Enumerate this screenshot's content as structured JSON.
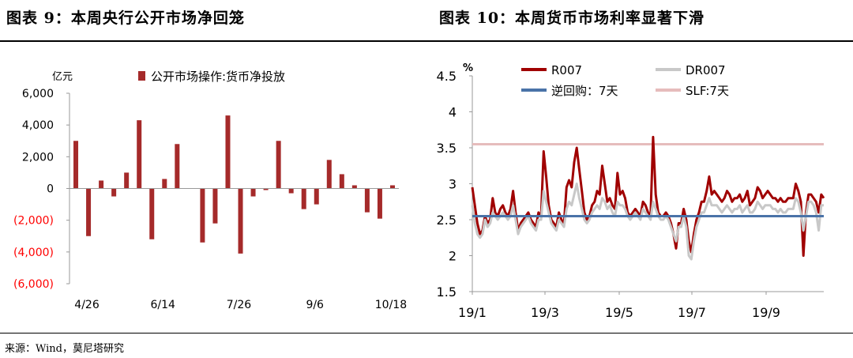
{
  "titles": {
    "left": "图表 9：本周央行公开市场净回笼",
    "right": "图表 10：本周货币市场利率显著下滑"
  },
  "source": "来源：Wind，莫尼塔研究",
  "colors": {
    "bar": "#a52a2a",
    "r007": "#a00000",
    "dr007": "#c8c8c8",
    "reverse_repo": "#4a73a8",
    "slf": "#e6bcbc",
    "negative_label": "#ff0000"
  },
  "chart_data": [
    {
      "type": "bar",
      "title": "",
      "ylabel": "亿元",
      "ylim": [
        -6000,
        6000
      ],
      "yticks": [
        6000,
        4000,
        2000,
        0,
        -2000,
        -4000,
        -6000
      ],
      "ytick_labels": [
        "6,000",
        "4,000",
        "2,000",
        "0",
        "(2,000)",
        "(4,000)",
        "(6,000)"
      ],
      "xtick_labels": [
        "4/26",
        "6/14",
        "7/26",
        "9/6",
        "10/18"
      ],
      "legend_position": "top",
      "series": [
        {
          "name": "公开市场操作:货币净投放",
          "values": [
            3000,
            -3000,
            500,
            -500,
            1000,
            4300,
            -3200,
            600,
            2800,
            0,
            -3400,
            -2200,
            4600,
            -4100,
            -500,
            -100,
            3000,
            -300,
            -1300,
            -1000,
            1800,
            900,
            200,
            -1500,
            -1900,
            200
          ]
        }
      ]
    },
    {
      "type": "line",
      "title": "",
      "ylabel": "%",
      "ylim": [
        1.5,
        4.5
      ],
      "yticks": [
        1.5,
        2,
        2.5,
        3,
        3.5,
        4,
        4.5
      ],
      "ytick_labels": [
        "1.5",
        "2",
        "2.5",
        "3",
        "3.5",
        "4",
        "4.5"
      ],
      "xtick_labels": [
        "19/1",
        "19/3",
        "19/5",
        "19/7",
        "19/9"
      ],
      "legend_position": "top",
      "series": [
        {
          "name": "R007",
          "values": [
            2.95,
            2.7,
            2.45,
            2.3,
            2.35,
            2.55,
            2.45,
            2.5,
            2.8,
            2.6,
            2.55,
            2.65,
            2.7,
            2.6,
            2.55,
            2.65,
            2.9,
            2.6,
            2.35,
            2.45,
            2.5,
            2.55,
            2.6,
            2.5,
            2.45,
            2.4,
            2.6,
            2.55,
            3.45,
            3.1,
            2.7,
            2.5,
            2.45,
            2.4,
            2.6,
            2.5,
            2.45,
            2.95,
            3.05,
            2.95,
            3.3,
            3.5,
            3.2,
            2.9,
            2.6,
            2.5,
            2.55,
            2.7,
            2.75,
            2.9,
            2.85,
            3.25,
            3.0,
            2.75,
            2.8,
            2.7,
            2.65,
            3.15,
            2.85,
            2.9,
            2.8,
            2.6,
            2.55,
            2.6,
            2.65,
            2.6,
            2.55,
            2.75,
            2.7,
            2.6,
            2.55,
            3.65,
            2.85,
            2.6,
            2.55,
            2.55,
            2.6,
            2.55,
            2.45,
            2.3,
            2.1,
            2.45,
            2.45,
            2.65,
            2.5,
            2.2,
            2.05,
            2.3,
            2.5,
            2.6,
            2.75,
            2.75,
            2.9,
            3.1,
            2.85,
            2.9,
            2.85,
            2.8,
            2.75,
            2.8,
            2.9,
            2.85,
            2.75,
            2.8,
            2.8,
            2.85,
            2.75,
            2.8,
            2.9,
            2.7,
            2.75,
            2.8,
            2.95,
            2.9,
            2.8,
            2.85,
            2.9,
            2.85,
            2.8,
            2.8,
            2.75,
            2.8,
            2.75,
            2.75,
            2.8,
            2.8,
            2.8,
            3.0,
            2.9,
            2.75,
            2.0,
            2.6,
            2.85,
            2.85,
            2.8,
            2.75,
            2.6,
            2.85,
            2.8
          ]
        },
        {
          "name": "DR007",
          "values": [
            2.7,
            2.45,
            2.3,
            2.25,
            2.3,
            2.5,
            2.4,
            2.45,
            2.6,
            2.55,
            2.5,
            2.55,
            2.6,
            2.55,
            2.5,
            2.55,
            2.7,
            2.5,
            2.3,
            2.4,
            2.45,
            2.5,
            2.55,
            2.45,
            2.4,
            2.35,
            2.5,
            2.5,
            2.9,
            2.75,
            2.6,
            2.45,
            2.4,
            2.35,
            2.5,
            2.45,
            2.4,
            2.65,
            2.75,
            2.7,
            2.85,
            3.0,
            2.8,
            2.65,
            2.5,
            2.45,
            2.5,
            2.6,
            2.65,
            2.7,
            2.65,
            2.8,
            2.75,
            2.65,
            2.7,
            2.6,
            2.55,
            2.75,
            2.7,
            2.7,
            2.65,
            2.55,
            2.5,
            2.55,
            2.6,
            2.55,
            2.5,
            2.65,
            2.6,
            2.55,
            2.5,
            2.75,
            2.65,
            2.55,
            2.5,
            2.5,
            2.55,
            2.5,
            2.4,
            2.3,
            2.2,
            2.4,
            2.4,
            2.55,
            2.4,
            2.0,
            1.95,
            2.2,
            2.4,
            2.5,
            2.6,
            2.6,
            2.7,
            2.8,
            2.7,
            2.7,
            2.7,
            2.65,
            2.6,
            2.65,
            2.7,
            2.65,
            2.6,
            2.65,
            2.65,
            2.7,
            2.6,
            2.65,
            2.7,
            2.6,
            2.6,
            2.65,
            2.75,
            2.7,
            2.65,
            2.7,
            2.7,
            2.7,
            2.65,
            2.65,
            2.6,
            2.65,
            2.6,
            2.6,
            2.65,
            2.65,
            2.65,
            2.8,
            2.75,
            2.6,
            2.35,
            2.55,
            2.75,
            2.75,
            2.7,
            2.6,
            2.35,
            2.7,
            2.7
          ]
        },
        {
          "name": "逆回购：7天",
          "constant": 2.55
        },
        {
          "name": "SLF:7天",
          "constant": 3.55
        }
      ]
    }
  ]
}
